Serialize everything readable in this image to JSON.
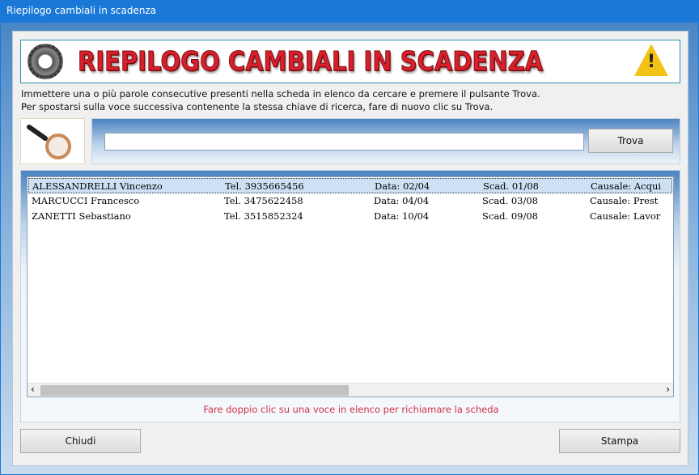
{
  "window": {
    "title": "Riepilogo cambiali in scadenza"
  },
  "banner": {
    "title": "RIEPILOGO CAMBIALI IN SCADENZA",
    "warning_mark": "!"
  },
  "instructions": [
    "Immettere una o più parole consecutive presenti nella scheda in elenco da cercare e premere il pulsante Trova.",
    "Per spostarsi sulla voce successiva contenente la stessa chiave di ricerca, fare di nuovo clic su Trova."
  ],
  "search": {
    "value": "",
    "placeholder": "",
    "button_label": "Trova"
  },
  "list": {
    "rows": [
      {
        "name": "ALESSANDRELLI Vincenzo",
        "tel": "Tel. 3935665456",
        "data": "Data: 02/04",
        "scad": "Scad. 01/08",
        "causale": "Causale: Acqui",
        "selected": true
      },
      {
        "name": "MARCUCCI Francesco",
        "tel": "Tel. 3475622458",
        "data": "Data: 04/04",
        "scad": "Scad. 03/08",
        "causale": "Causale: Prest"
      },
      {
        "name": "ZANETTI Sebastiano",
        "tel": "Tel. 3515852324",
        "data": "Data: 10/04",
        "scad": "Scad. 09/08",
        "causale": "Causale: Lavor"
      }
    ],
    "scroll_left": "‹",
    "scroll_right": "›"
  },
  "hint": "Fare doppio clic su una voce in elenco per richiamare la scheda",
  "buttons": {
    "close": "Chiudi",
    "print": "Stampa"
  },
  "colors": {
    "titlebar": "#1a78d6",
    "banner_text": "#d8202c",
    "hint": "#d0304a",
    "selection": "#cde0f4"
  }
}
